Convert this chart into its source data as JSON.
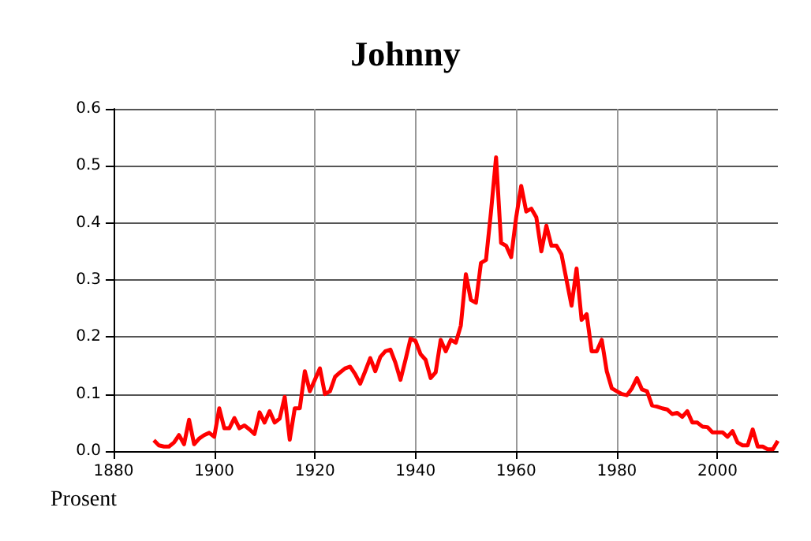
{
  "chart_data": {
    "type": "line",
    "title": "Johnny",
    "ylabel": "Prosent",
    "x": [
      1888,
      1889,
      1890,
      1891,
      1892,
      1893,
      1894,
      1895,
      1896,
      1897,
      1898,
      1899,
      1900,
      1901,
      1902,
      1903,
      1904,
      1905,
      1906,
      1907,
      1908,
      1909,
      1910,
      1911,
      1912,
      1913,
      1914,
      1915,
      1916,
      1917,
      1918,
      1919,
      1920,
      1921,
      1922,
      1923,
      1924,
      1925,
      1926,
      1927,
      1928,
      1929,
      1930,
      1931,
      1932,
      1933,
      1934,
      1935,
      1936,
      1937,
      1938,
      1939,
      1940,
      1941,
      1942,
      1943,
      1944,
      1945,
      1946,
      1947,
      1948,
      1949,
      1950,
      1951,
      1952,
      1953,
      1954,
      1955,
      1956,
      1957,
      1958,
      1959,
      1960,
      1961,
      1962,
      1963,
      1964,
      1965,
      1966,
      1967,
      1968,
      1969,
      1970,
      1971,
      1972,
      1973,
      1974,
      1975,
      1976,
      1977,
      1978,
      1979,
      1980,
      1981,
      1982,
      1983,
      1984,
      1985,
      1986,
      1987,
      1988,
      1989,
      1990,
      1991,
      1992,
      1993,
      1994,
      1995,
      1996,
      1997,
      1998,
      1999,
      2000,
      2001,
      2002,
      2003,
      2004,
      2005,
      2006,
      2007,
      2008,
      2009,
      2010,
      2011,
      2012
    ],
    "series": [
      {
        "color": "#ff0000",
        "values": [
          0.019,
          0.01,
          0.008,
          0.008,
          0.015,
          0.028,
          0.012,
          0.055,
          0.012,
          0.022,
          0.028,
          0.032,
          0.025,
          0.075,
          0.04,
          0.04,
          0.058,
          0.04,
          0.045,
          0.038,
          0.03,
          0.068,
          0.05,
          0.07,
          0.05,
          0.057,
          0.095,
          0.02,
          0.075,
          0.075,
          0.14,
          0.105,
          0.125,
          0.145,
          0.1,
          0.105,
          0.13,
          0.138,
          0.145,
          0.148,
          0.135,
          0.118,
          0.14,
          0.163,
          0.14,
          0.165,
          0.175,
          0.178,
          0.155,
          0.125,
          0.16,
          0.197,
          0.193,
          0.17,
          0.16,
          0.128,
          0.138,
          0.195,
          0.175,
          0.195,
          0.19,
          0.22,
          0.31,
          0.265,
          0.26,
          0.33,
          0.335,
          0.42,
          0.515,
          0.365,
          0.36,
          0.34,
          0.41,
          0.465,
          0.42,
          0.425,
          0.41,
          0.35,
          0.395,
          0.36,
          0.36,
          0.345,
          0.3,
          0.255,
          0.32,
          0.23,
          0.24,
          0.175,
          0.175,
          0.195,
          0.14,
          0.11,
          0.105,
          0.1,
          0.098,
          0.11,
          0.128,
          0.108,
          0.105,
          0.08,
          0.078,
          0.075,
          0.073,
          0.065,
          0.067,
          0.06,
          0.07,
          0.05,
          0.05,
          0.043,
          0.042,
          0.033,
          0.033,
          0.033,
          0.025,
          0.035,
          0.015,
          0.01,
          0.01,
          0.038,
          0.008,
          0.008,
          0.003,
          0.003,
          0.018
        ]
      }
    ],
    "xlim": [
      1880,
      2012
    ],
    "xticks": [
      1880,
      1900,
      1920,
      1940,
      1960,
      1980,
      2000
    ],
    "ylim": [
      0,
      0.6
    ],
    "yticks": [
      {
        "value": 0,
        "label": "0.0"
      },
      0.1,
      0.2,
      0.3,
      0.4,
      0.5,
      0.6
    ],
    "grid": true,
    "marker": "none",
    "line_style": "solid"
  }
}
